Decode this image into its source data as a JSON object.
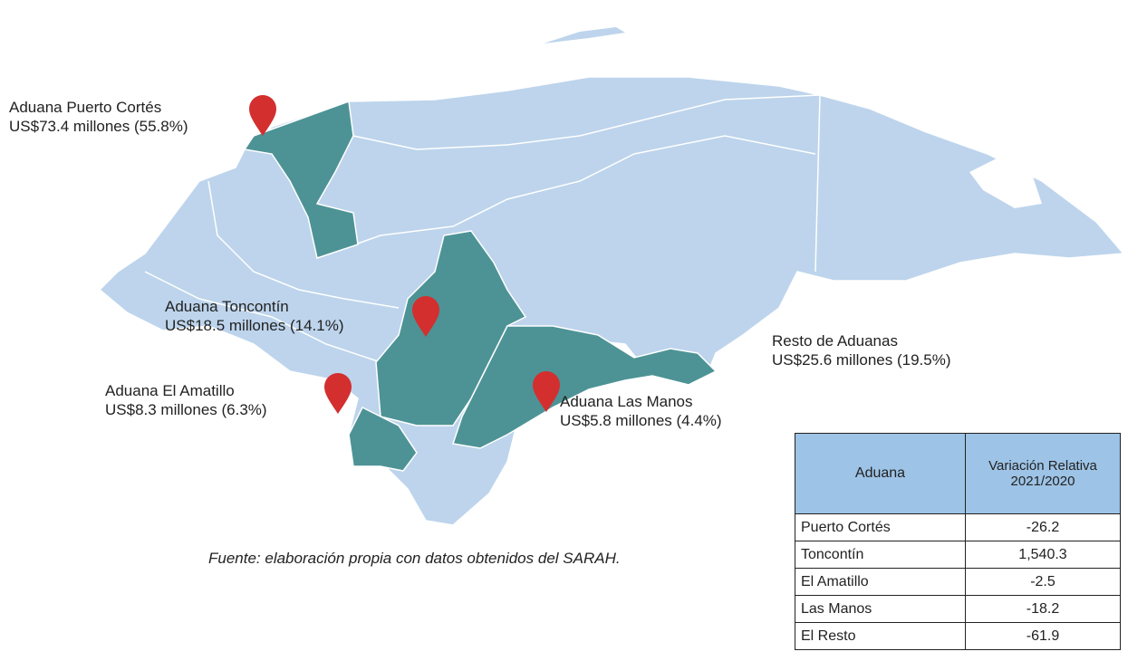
{
  "map": {
    "labels": [
      {
        "name": "Aduana Puerto Cortés",
        "value": "US$73.4 millones (55.8%)"
      },
      {
        "name": "Aduana Toncontín",
        "value": "US$18.5 millones (14.1%)"
      },
      {
        "name": "Aduana El Amatillo",
        "value": "US$8.3 millones (6.3%)"
      },
      {
        "name": "Aduana Las Manos",
        "value": "US$5.8 millones (4.4%)"
      },
      {
        "name": "Resto de Aduanas",
        "value": "US$25.6 millones (19.5%)"
      }
    ]
  },
  "source": "Fuente: elaboración propia con datos obtenidos del SARAH.",
  "table": {
    "header": [
      "Aduana",
      "Variación Relativa 2021/2020"
    ],
    "rows": [
      [
        "Puerto Cortés",
        "-26.2"
      ],
      [
        "Toncontín",
        "1,540.3"
      ],
      [
        "El Amatillo",
        "-2.5"
      ],
      [
        "Las Manos",
        "-18.2"
      ],
      [
        "El Resto",
        "-61.9"
      ]
    ]
  }
}
